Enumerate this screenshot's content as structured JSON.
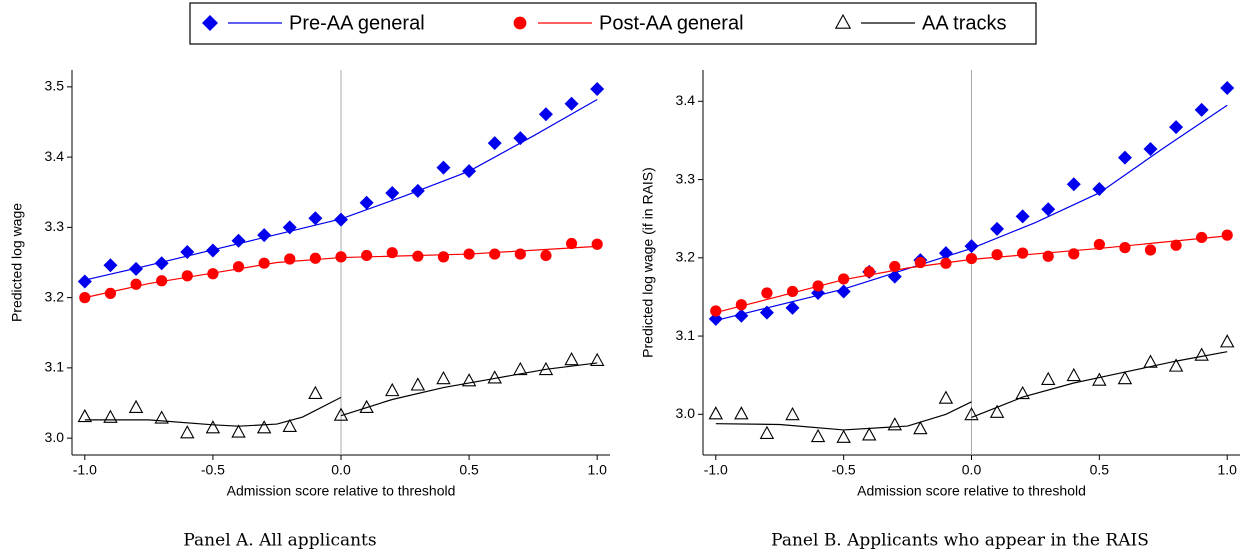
{
  "chart_data": [
    {
      "type": "scatter",
      "caption": "Panel A. All applicants",
      "xlabel": "Admission score relative to threshold",
      "ylabel": "Predicted log wage",
      "xlim": [
        -1.05,
        1.05
      ],
      "ylim": [
        2.976,
        3.524
      ],
      "xticks": [
        {
          "value": -1,
          "label": "-1.0"
        },
        -0.5,
        {
          "value": 0,
          "label": "0.0"
        },
        0.5,
        {
          "value": 1,
          "label": "1.0"
        }
      ],
      "yticks": [
        {
          "value": 3,
          "label": "3.0"
        },
        3.1,
        3.2,
        3.3,
        3.4,
        3.5
      ],
      "vline": 0,
      "x": [
        -1,
        -0.9,
        -0.8,
        -0.7,
        -0.6,
        -0.5,
        -0.4,
        -0.3,
        -0.2,
        -0.1,
        0,
        0.1,
        0.2,
        0.3,
        0.4,
        0.5,
        0.6,
        0.7,
        0.8,
        0.9,
        1
      ],
      "series": [
        {
          "name": "Pre-AA general",
          "color": "#0000ee",
          "marker": "diamond",
          "values": [
            3.223,
            3.246,
            3.241,
            3.249,
            3.265,
            3.267,
            3.281,
            3.289,
            3.3,
            3.313,
            3.311,
            3.335,
            3.349,
            3.352,
            3.385,
            3.38,
            3.42,
            3.427,
            3.461,
            3.476,
            3.497
          ],
          "fit": [
            {
              "x": [
                -1,
                -0.75,
                -0.5,
                -0.25,
                0,
                0.25,
                0.5,
                0.75,
                1
              ],
              "values": [
                3.225,
                3.246,
                3.268,
                3.29,
                3.312,
                3.345,
                3.38,
                3.43,
                3.482
              ]
            }
          ]
        },
        {
          "name": "Post-AA general",
          "color": "#ff0000",
          "marker": "circle",
          "values": [
            3.2,
            3.206,
            3.219,
            3.224,
            3.231,
            3.234,
            3.244,
            3.249,
            3.255,
            3.256,
            3.258,
            3.26,
            3.264,
            3.259,
            3.258,
            3.262,
            3.262,
            3.262,
            3.26,
            3.277,
            3.276
          ],
          "fit": [
            {
              "x": [
                -1,
                -0.75,
                -0.5,
                -0.25,
                0,
                0.5,
                1
              ],
              "values": [
                3.2,
                3.22,
                3.235,
                3.25,
                3.257,
                3.262,
                3.273
              ]
            }
          ]
        },
        {
          "name": "AA tracks",
          "color": "#000000",
          "marker": "triangle",
          "values": [
            3.03,
            3.029,
            3.043,
            3.028,
            3.007,
            3.014,
            3.008,
            3.014,
            3.016,
            3.063,
            3.032,
            3.043,
            3.067,
            3.075,
            3.084,
            3.081,
            3.085,
            3.097,
            3.097,
            3.111,
            3.11
          ],
          "fit": [
            {
              "x": [
                -1,
                -0.75,
                -0.5,
                -0.4,
                -0.25,
                -0.15,
                0
              ],
              "values": [
                3.026,
                3.026,
                3.019,
                3.017,
                3.02,
                3.03,
                3.058
              ]
            },
            {
              "x": [
                0,
                0.2,
                0.4,
                0.6,
                0.8,
                1
              ],
              "values": [
                3.032,
                3.055,
                3.072,
                3.085,
                3.098,
                3.107
              ]
            }
          ]
        }
      ]
    },
    {
      "type": "scatter",
      "caption": "Panel B. Applicants who appear in the RAIS",
      "xlabel": "Admission score relative to threshold",
      "ylabel": "Predicted log wage (if in RAIS)",
      "xlim": [
        -1.05,
        1.05
      ],
      "ylim": [
        2.948,
        3.44
      ],
      "xticks": [
        {
          "value": -1,
          "label": "-1.0"
        },
        -0.5,
        {
          "value": 0,
          "label": "0.0"
        },
        0.5,
        {
          "value": 1,
          "label": "1.0"
        }
      ],
      "yticks": [
        {
          "value": 3,
          "label": "3.0"
        },
        3.1,
        3.2,
        3.3,
        3.4
      ],
      "vline": 0,
      "x": [
        -1,
        -0.9,
        -0.8,
        -0.7,
        -0.6,
        -0.5,
        -0.4,
        -0.3,
        -0.2,
        -0.1,
        0,
        0.1,
        0.2,
        0.3,
        0.4,
        0.5,
        0.6,
        0.7,
        0.8,
        0.9,
        1
      ],
      "series": [
        {
          "color": "#0000ee",
          "marker": "diamond",
          "values": [
            3.122,
            3.126,
            3.13,
            3.136,
            3.155,
            3.157,
            3.182,
            3.176,
            3.197,
            3.206,
            3.215,
            3.237,
            3.253,
            3.262,
            3.294,
            3.288,
            3.328,
            3.339,
            3.367,
            3.389,
            3.417
          ],
          "fit": [
            {
              "x": [
                -1,
                -0.5,
                0,
                0.25,
                0.5,
                0.75,
                1
              ],
              "values": [
                3.12,
                3.16,
                3.212,
                3.245,
                3.283,
                3.34,
                3.395
              ]
            }
          ]
        },
        {
          "color": "#ff0000",
          "marker": "circle",
          "values": [
            3.132,
            3.14,
            3.155,
            3.157,
            3.164,
            3.173,
            3.182,
            3.189,
            3.194,
            3.193,
            3.199,
            3.204,
            3.206,
            3.202,
            3.205,
            3.217,
            3.213,
            3.21,
            3.216,
            3.226,
            3.229
          ],
          "fit": [
            {
              "x": [
                -1,
                -0.5,
                -0.25,
                0,
                0.5,
                1
              ],
              "values": [
                3.13,
                3.172,
                3.187,
                3.198,
                3.212,
                3.228
              ]
            }
          ]
        },
        {
          "color": "#000000",
          "marker": "triangle",
          "values": [
            3.0,
            3.0,
            2.975,
            2.999,
            2.971,
            2.97,
            2.973,
            2.986,
            2.981,
            3.02,
            2.999,
            3.002,
            3.026,
            3.044,
            3.049,
            3.043,
            3.045,
            3.066,
            3.061,
            3.075,
            3.092
          ],
          "fit": [
            {
              "x": [
                -1,
                -0.75,
                -0.5,
                -0.25,
                -0.1,
                0
              ],
              "values": [
                2.988,
                2.987,
                2.98,
                2.985,
                3.0,
                3.016
              ]
            },
            {
              "x": [
                0,
                0.2,
                0.4,
                0.6,
                0.8,
                1
              ],
              "values": [
                2.996,
                3.022,
                3.04,
                3.054,
                3.068,
                3.08
              ]
            }
          ]
        }
      ]
    }
  ]
}
